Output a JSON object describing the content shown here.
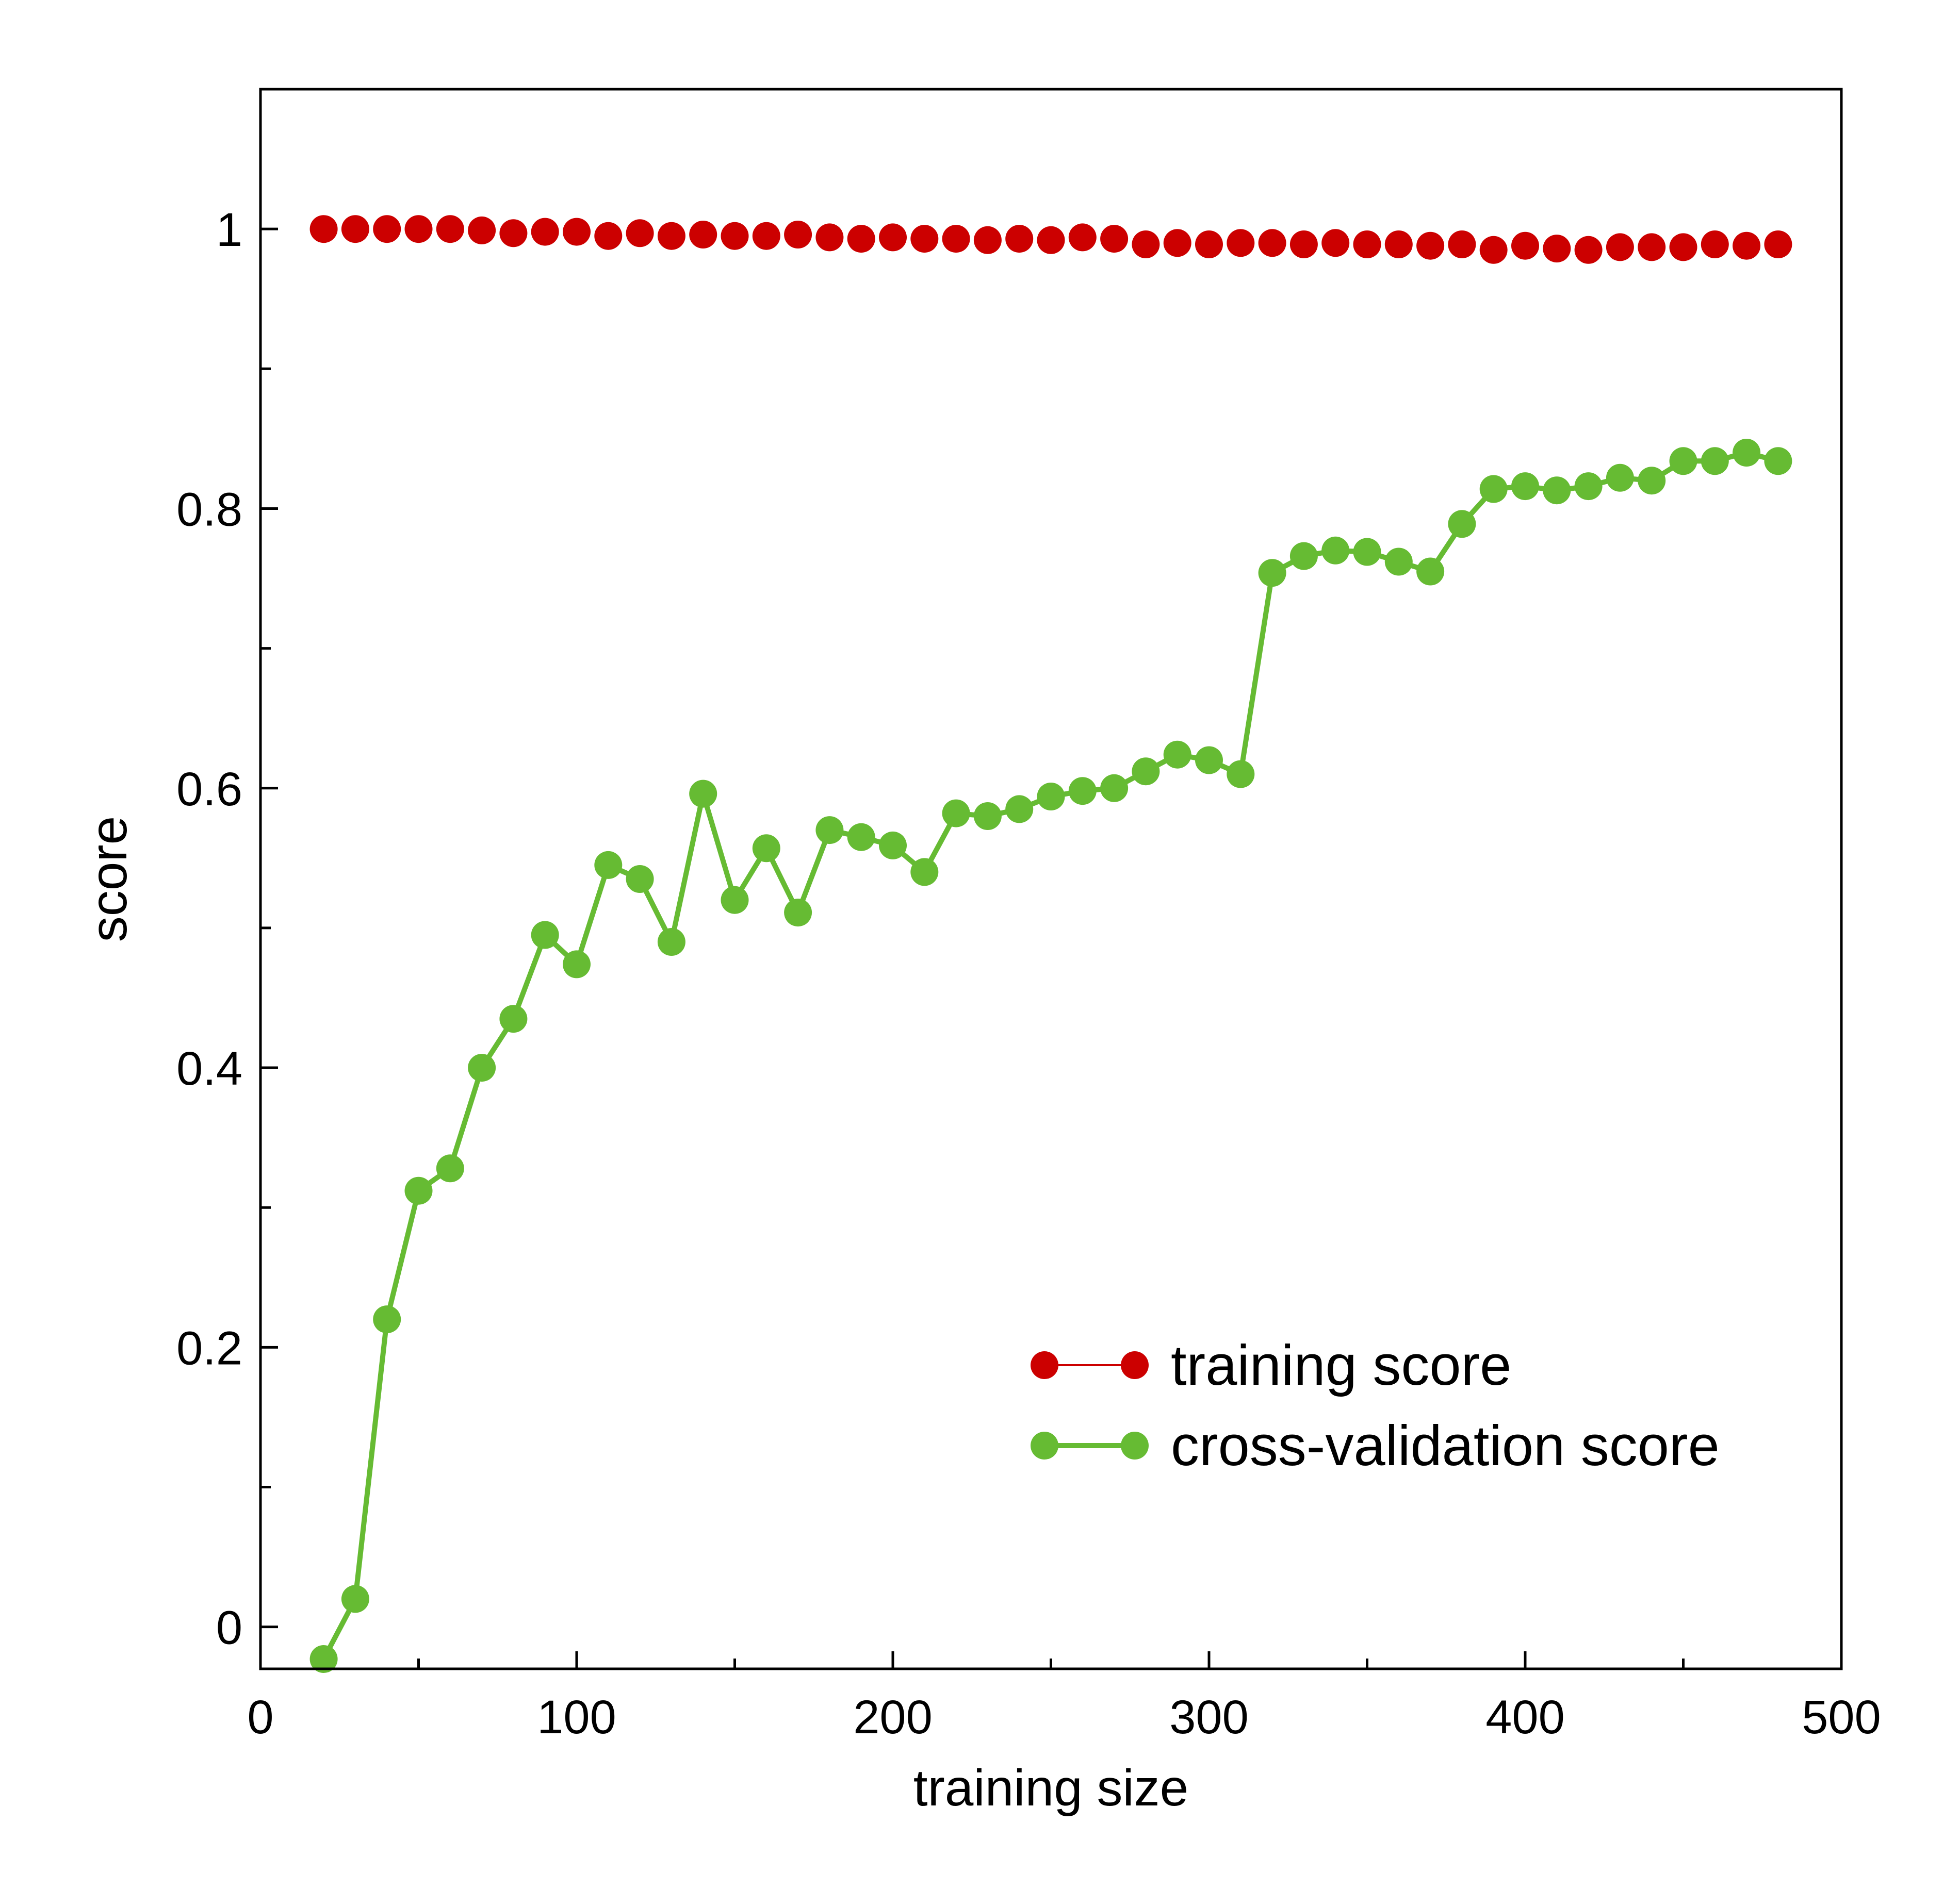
{
  "chart_data": {
    "type": "line",
    "title": "",
    "xlabel": "training size",
    "ylabel": "score",
    "xlim": [
      0,
      500
    ],
    "ylim": [
      -0.03,
      1.1
    ],
    "x_major_ticks": [
      0,
      100,
      200,
      300,
      400,
      500
    ],
    "x_tick_labels": [
      "0",
      "100",
      "200",
      "300",
      "400",
      "500"
    ],
    "y_major_ticks": [
      0,
      0.2,
      0.4,
      0.6,
      0.8,
      1
    ],
    "y_tick_labels": [
      "0",
      "0.2",
      "0.4",
      "0.6",
      "0.8",
      "1"
    ],
    "x_minor_step": 50,
    "y_minor_step": 0.1,
    "grid": false,
    "legend_position": "lower-right",
    "x": [
      20,
      30,
      40,
      50,
      60,
      70,
      80,
      90,
      100,
      110,
      120,
      130,
      140,
      150,
      160,
      170,
      180,
      190,
      200,
      210,
      220,
      230,
      240,
      250,
      260,
      270,
      280,
      290,
      300,
      310,
      320,
      330,
      340,
      350,
      360,
      370,
      380,
      390,
      400,
      410,
      420,
      430,
      440,
      450,
      460,
      470,
      480
    ],
    "series": [
      {
        "name": "training score",
        "color": "#cc0000",
        "show_line": false,
        "values": [
          1.0,
          1.0,
          1.0,
          1.0,
          1.0,
          0.999,
          0.997,
          0.998,
          0.998,
          0.995,
          0.997,
          0.995,
          0.996,
          0.995,
          0.995,
          0.996,
          0.994,
          0.993,
          0.994,
          0.993,
          0.993,
          0.992,
          0.993,
          0.992,
          0.994,
          0.993,
          0.989,
          0.99,
          0.989,
          0.99,
          0.99,
          0.989,
          0.99,
          0.989,
          0.989,
          0.988,
          0.989,
          0.985,
          0.988,
          0.986,
          0.985,
          0.987,
          0.987,
          0.987,
          0.989,
          0.988,
          0.989
        ]
      },
      {
        "name": "cross-validation score",
        "color": "#66bb33",
        "show_line": true,
        "values": [
          -0.023,
          0.02,
          0.22,
          0.312,
          0.328,
          0.4,
          0.435,
          0.495,
          0.474,
          0.545,
          0.535,
          0.49,
          0.596,
          0.52,
          0.557,
          0.511,
          0.57,
          0.565,
          0.559,
          0.54,
          0.582,
          0.58,
          0.585,
          0.594,
          0.598,
          0.6,
          0.612,
          0.624,
          0.62,
          0.61,
          0.754,
          0.766,
          0.77,
          0.769,
          0.762,
          0.755,
          0.789,
          0.814,
          0.816,
          0.813,
          0.816,
          0.822,
          0.82,
          0.834,
          0.834,
          0.84,
          0.834
        ]
      }
    ]
  }
}
